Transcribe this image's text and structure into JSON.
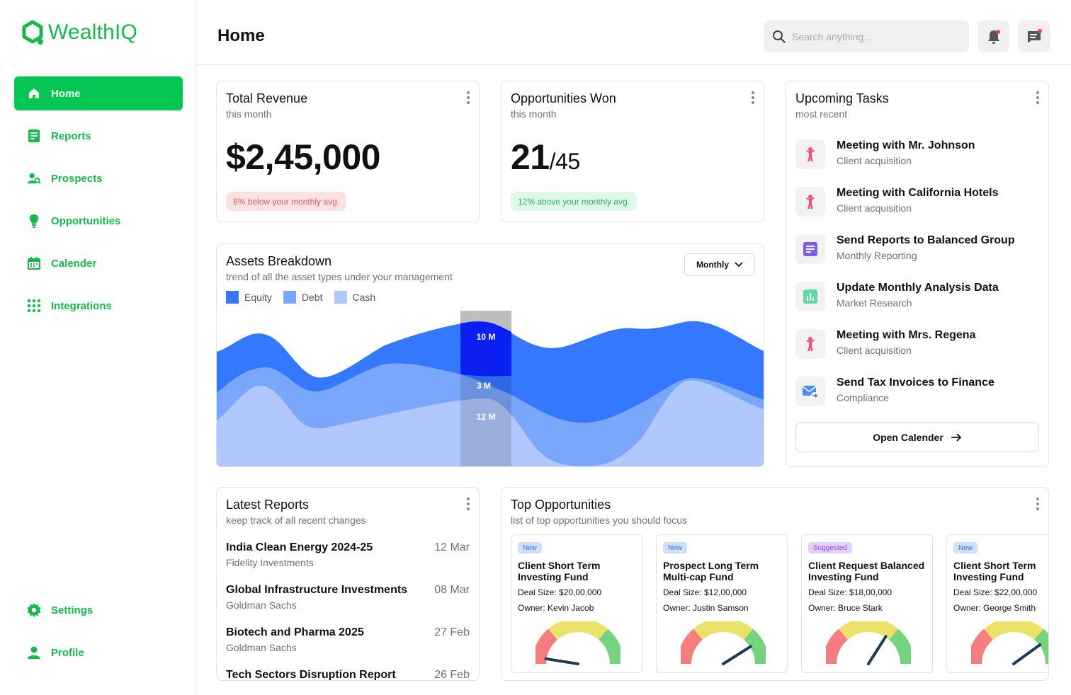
{
  "app": {
    "name": "WealthIQ",
    "brand_color": "#05c653"
  },
  "sidebar": {
    "items": [
      {
        "label": "Home",
        "icon": "home-icon",
        "active": true
      },
      {
        "label": "Reports",
        "icon": "reports-icon"
      },
      {
        "label": "Prospects",
        "icon": "prospects-icon"
      },
      {
        "label": "Opportunities",
        "icon": "lightbulb-icon"
      },
      {
        "label": "Calender",
        "icon": "calendar-icon"
      },
      {
        "label": "Integrations",
        "icon": "grid-icon"
      }
    ],
    "bottom": [
      {
        "label": "Settings",
        "icon": "gear-icon"
      },
      {
        "label": "Profile",
        "icon": "user-icon"
      }
    ]
  },
  "header": {
    "title": "Home",
    "search_placeholder": "Search anything..."
  },
  "revenue": {
    "title": "Total Revenue",
    "subtitle": "this month",
    "value": "$2,45,000",
    "note": "8% below your monthly avg."
  },
  "opps_won": {
    "title": "Opportunities Won",
    "subtitle": "this month",
    "value": "21",
    "total": "/45",
    "note": "12% above your monthly avg."
  },
  "tasks": {
    "title": "Upcoming Tasks",
    "subtitle": "most recent",
    "items": [
      {
        "title": "Meeting with Mr. Johnson",
        "sub": "Client acquisition",
        "icon": "person-icon"
      },
      {
        "title": "Meeting with California Hotels",
        "sub": "Client acquisition",
        "icon": "person-icon"
      },
      {
        "title": "Send Reports to Balanced Group",
        "sub": "Monthly Reporting",
        "icon": "document-icon"
      },
      {
        "title": "Update Monthly Analysis Data",
        "sub": "Market Research",
        "icon": "bar-chart-icon"
      },
      {
        "title": "Meeting with Mrs. Regena",
        "sub": "Client acquisition",
        "icon": "person-icon"
      },
      {
        "title": "Send Tax Invoices to Finance",
        "sub": "Compliance",
        "icon": "mail-forward-icon"
      }
    ],
    "button": "Open Calender"
  },
  "assets": {
    "title": "Assets Breakdown",
    "subtitle": "trend of all the asset types under your management",
    "dropdown": "Monthly",
    "legend": [
      {
        "label": "Equity",
        "color": "#3478ff"
      },
      {
        "label": "Debt",
        "color": "#7aa6fb"
      },
      {
        "label": "Cash",
        "color": "#b0c8fb"
      }
    ],
    "highlight_labels": [
      "10 M",
      "3 M",
      "12 M"
    ]
  },
  "reports": {
    "title": "Latest Reports",
    "subtitle": "keep track of all recent changes",
    "items": [
      {
        "title": "India Clean Energy 2024-25",
        "sub": "Fidelity Investments",
        "date": "12 Mar"
      },
      {
        "title": "Global Infrastructure Investments",
        "sub": "Goldman Sachs",
        "date": "08 Mar"
      },
      {
        "title": "Biotech and Pharma 2025",
        "sub": "Goldman Sachs",
        "date": "27 Feb"
      },
      {
        "title": "Tech Sectors Disruption Report",
        "sub": "",
        "date": "26 Feb"
      }
    ]
  },
  "top_opps": {
    "title": "Top Opportunities",
    "subtitle": "list of top opportunities you should focus",
    "items": [
      {
        "badge": "New",
        "badge_type": "new",
        "title": "Client Short Term Investing Fund",
        "deal": "Deal Size: $20,00,000",
        "owner": "Owner: Kevin Jacob",
        "score": 0.05
      },
      {
        "badge": "New",
        "badge_type": "new",
        "title": "Prospect Long Term Multi-cap Fund",
        "deal": "Deal Size: $12,00,000",
        "owner": "Owner: Justin Samson",
        "score": 0.82
      },
      {
        "badge": "Suggested",
        "badge_type": "sugg",
        "title": "Client Request Balanced Investing Fund",
        "deal": "Deal Size: $18,00,000",
        "owner": "Owner: Bruce Stark",
        "score": 0.68
      },
      {
        "badge": "New",
        "badge_type": "new",
        "title": "Client Short Term Investing Fund",
        "deal": "Deal Size: $22,00,000",
        "owner": "Owner: George Smith",
        "score": 0.8
      }
    ]
  }
}
